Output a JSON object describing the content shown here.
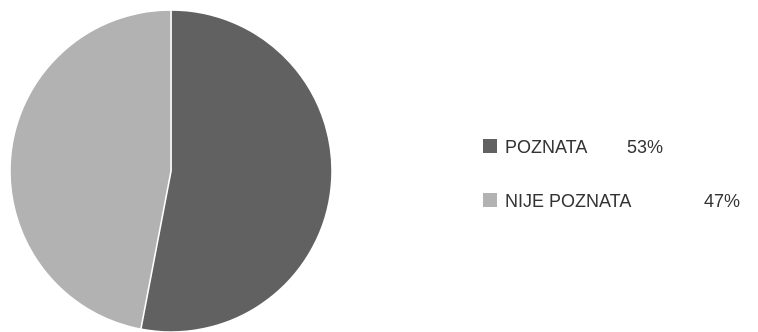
{
  "chart_data": {
    "type": "pie",
    "slices": [
      {
        "label": "POZNATA",
        "value": 53,
        "display": "53%",
        "color": "#616161"
      },
      {
        "label": "NIJE POZNATA",
        "value": 47,
        "display": "47%",
        "color": "#b2b2b2"
      }
    ],
    "legend_position": "right"
  }
}
